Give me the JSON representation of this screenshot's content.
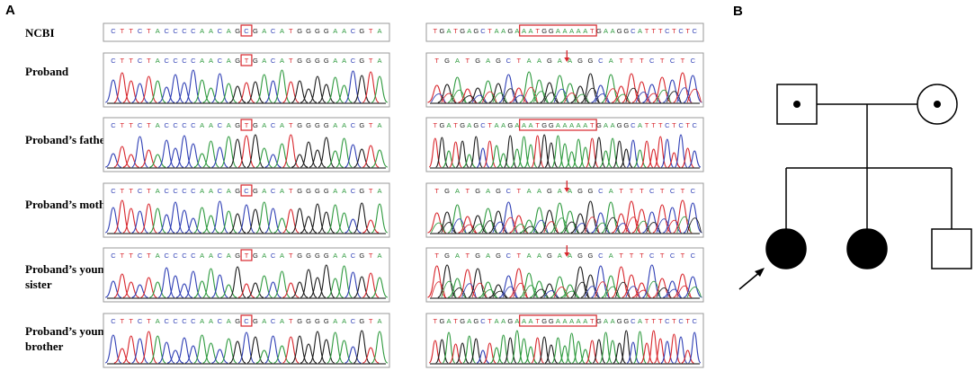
{
  "panels": {
    "a": "A",
    "b": "B"
  },
  "rows": [
    {
      "label_lines": [
        "NCBI"
      ],
      "left_seq": "CTTCTACCCCAACAGCGACATGGGGAACGTA",
      "left_hl": [
        15,
        15
      ],
      "right_seq": "TGATGAGCTAAGAAATGGAAAAATGAAGGCATTTCTCTC",
      "right_hl": [
        13,
        23
      ],
      "chromatogram": false,
      "right_arrow": false
    },
    {
      "label_lines": [
        "Proband"
      ],
      "left_seq": "CTTCTACCCCAACAGTGACATGGGGAACGTA",
      "left_hl": [
        15,
        15
      ],
      "right_seq": "TGATGAGCTAAGAAGGCATTTCTCTC",
      "right_hl": null,
      "chromatogram": true,
      "right_arrow": true
    },
    {
      "label_lines": [
        "Proband’s father"
      ],
      "left_seq": "CTTCTACCCCAACAGTGACATGGGGAACGTA",
      "left_hl": [
        15,
        15
      ],
      "right_seq": "TGATGAGCTAAGAAATGGAAAAATGAAGGCATTTCTCTC",
      "right_hl": [
        13,
        23
      ],
      "chromatogram": true,
      "right_arrow": false
    },
    {
      "label_lines": [
        "Proband’s mother"
      ],
      "left_seq": "CTTCTACCCCAACAGCGACATGGGGAACGTA",
      "left_hl": [
        15,
        15
      ],
      "right_seq": "TGATGAGCTAAGAAGGCATTTCTCTC",
      "right_hl": null,
      "chromatogram": true,
      "right_arrow": true
    },
    {
      "label_lines": [
        "Proband’s younger",
        "sister"
      ],
      "left_seq": "CTTCTACCCCAACAGTGACATGGGGAACGTA",
      "left_hl": [
        15,
        15
      ],
      "right_seq": "TGATGAGCTAAGAAGGCATTTCTCTC",
      "right_hl": null,
      "chromatogram": true,
      "right_arrow": true
    },
    {
      "label_lines": [
        "Proband’s younger",
        "brother"
      ],
      "left_seq": "CTTCTACCCCAACAGCGACATGGGGAACGTA",
      "left_hl": [
        15,
        15
      ],
      "right_seq": "TGATGAGCTAAGAAATGGAAAAATGAAGGCATTTCTCTC",
      "right_hl": [
        13,
        23
      ],
      "chromatogram": true,
      "right_arrow": false
    }
  ],
  "base_colors": {
    "A": "#2e9a3e",
    "C": "#2f3fb5",
    "G": "#1a1a1a",
    "T": "#d8262c"
  },
  "highlight_color": "#d8262c",
  "pedigree": {
    "father": {
      "shape": "square",
      "status": "carrier"
    },
    "mother": {
      "shape": "circle",
      "status": "carrier"
    },
    "children": [
      {
        "shape": "circle",
        "status": "affected",
        "proband": true
      },
      {
        "shape": "circle",
        "status": "affected",
        "proband": false
      },
      {
        "shape": "square",
        "status": "unaffected",
        "proband": false
      }
    ]
  }
}
